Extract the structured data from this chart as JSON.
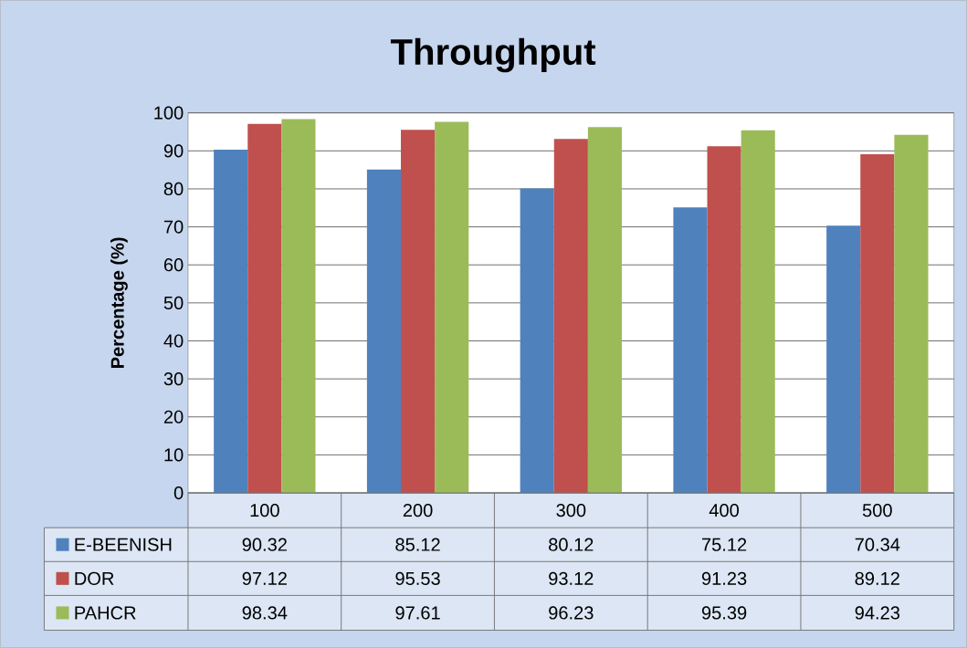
{
  "chart_data": {
    "type": "bar",
    "title": "Throughput",
    "ylabel": "Percentage (%)",
    "categories": [
      "100",
      "200",
      "300",
      "400",
      "500"
    ],
    "series": [
      {
        "name": "E-BEENISH",
        "color": "#4f81bd",
        "values": [
          90.32,
          85.12,
          80.12,
          75.12,
          70.34
        ]
      },
      {
        "name": "DOR",
        "color": "#c0504d",
        "values": [
          97.12,
          95.53,
          93.12,
          91.23,
          89.12
        ]
      },
      {
        "name": "PAHCR",
        "color": "#9bbb59",
        "values": [
          98.34,
          97.61,
          96.23,
          95.39,
          94.23
        ]
      }
    ],
    "ylim": [
      0,
      100
    ],
    "yticks": [
      0,
      10,
      20,
      30,
      40,
      50,
      60,
      70,
      80,
      90,
      100
    ],
    "grid": "y",
    "legend": "bottom",
    "data_labels": true
  }
}
